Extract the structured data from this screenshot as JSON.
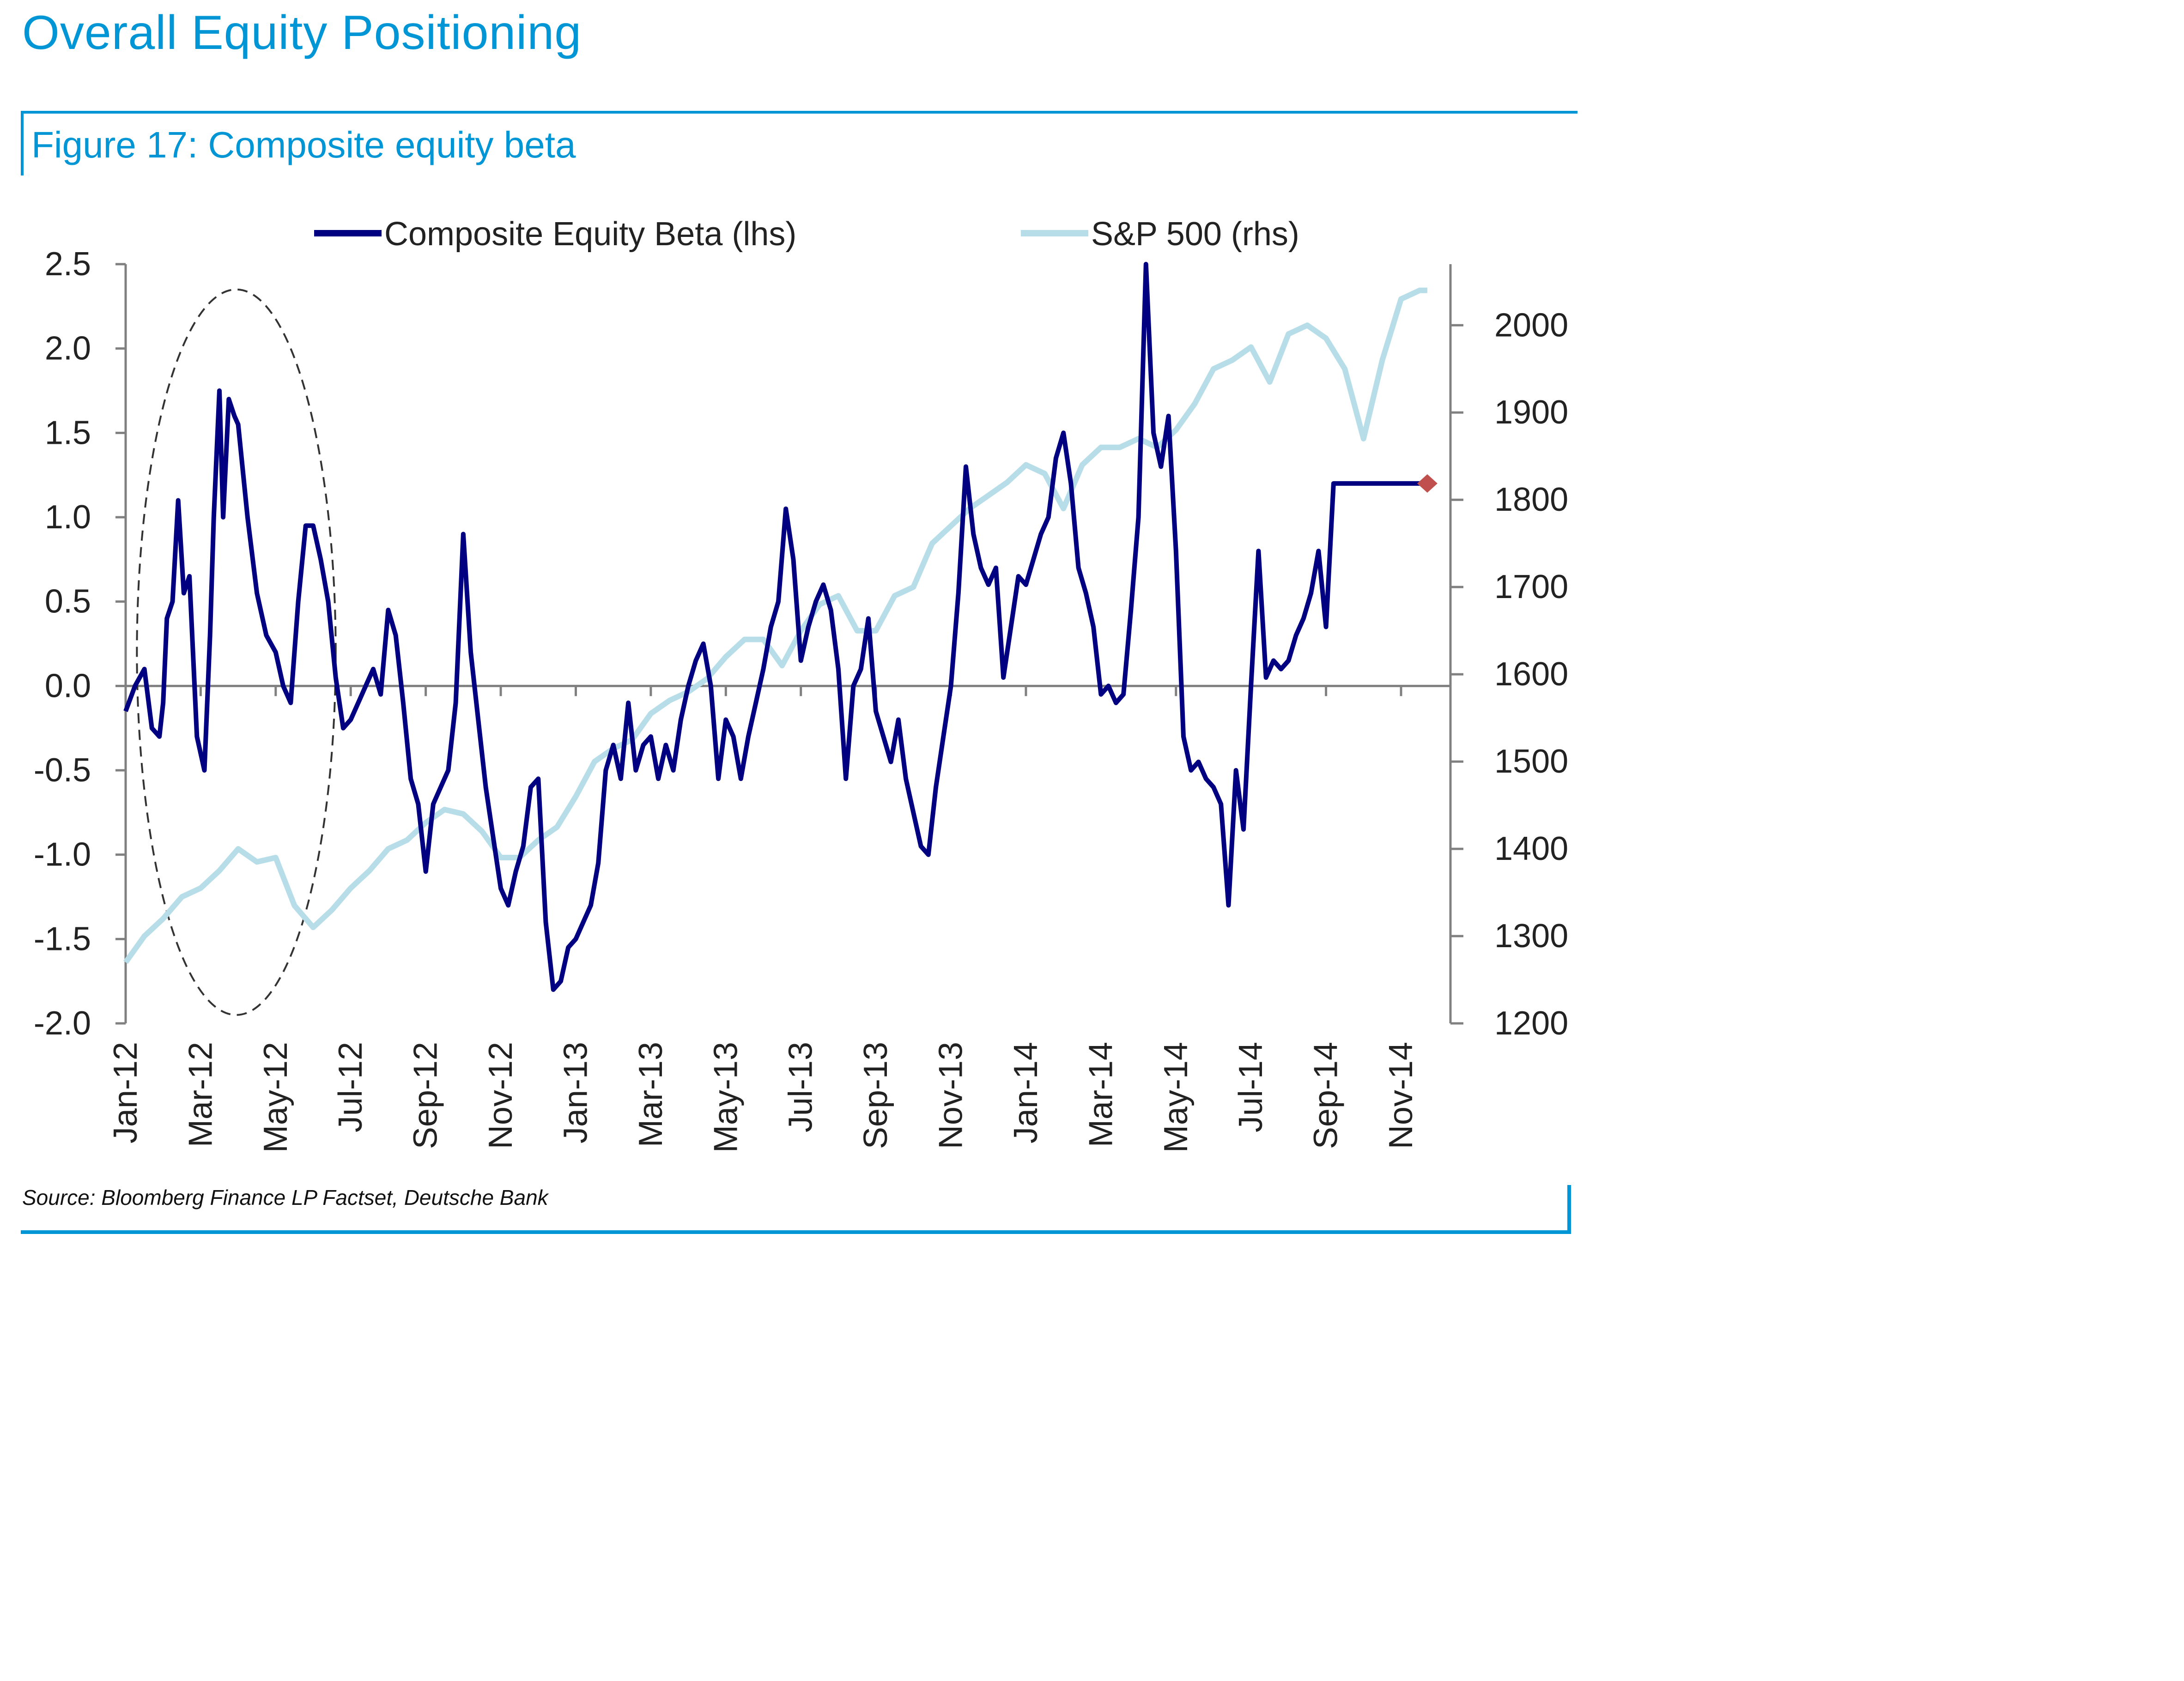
{
  "page": {
    "title": "Overall Equity Positioning",
    "figure_title": "Figure 17: Composite equity beta",
    "source": "Source: Bloomberg Finance LP  Factset, Deutsche Bank"
  },
  "colors": {
    "accent": "#0096d6",
    "beta_line": "#000080",
    "spx_line": "#b7dde8",
    "latest_marker": "#c0504d",
    "axis": "#808080",
    "annotation_ellipse": "#333333"
  },
  "chart_data": {
    "type": "line",
    "title": "Figure 17: Composite equity beta",
    "xlabel": "",
    "ylabel_left": "",
    "ylabel_right": "",
    "x_unit": "months since Jan-12",
    "x_range": [
      0,
      34.8
    ],
    "ylim_left": [
      -2.0,
      2.5
    ],
    "ylim_right": [
      1200,
      2070
    ],
    "yticks_left": [
      "2.5",
      "2.0",
      "1.5",
      "1.0",
      "0.5",
      "0.0",
      "-0.5",
      "-1.0",
      "-1.5",
      "-2.0"
    ],
    "ytick_values_left": [
      2.5,
      2.0,
      1.5,
      1.0,
      0.5,
      0.0,
      -0.5,
      -1.0,
      -1.5,
      -2.0
    ],
    "yticks_right": [
      "2000",
      "1900",
      "1800",
      "1700",
      "1600",
      "1500",
      "1400",
      "1300",
      "1200"
    ],
    "ytick_values_right": [
      2000,
      1900,
      1800,
      1700,
      1600,
      1500,
      1400,
      1300,
      1200
    ],
    "xticks": [
      "Jan-12",
      "Mar-12",
      "May-12",
      "Jul-12",
      "Sep-12",
      "Nov-12",
      "Jan-13",
      "Mar-13",
      "May-13",
      "Jul-13",
      "Sep-13",
      "Nov-13",
      "Jan-14",
      "Mar-14",
      "May-14",
      "Jul-14",
      "Sep-14",
      "Nov-14"
    ],
    "xtick_values": [
      0,
      2,
      4,
      6,
      8,
      10,
      12,
      14,
      16,
      18,
      20,
      22,
      24,
      26,
      28,
      30,
      32,
      34
    ],
    "legend": {
      "placement": "top",
      "entries": [
        "Composite Equity Beta (lhs)",
        "S&P 500 (rhs)"
      ]
    },
    "grid": false,
    "zero_line": true,
    "series": [
      {
        "name": "Composite Equity Beta (lhs)",
        "axis": "left",
        "x": [
          0,
          0.25,
          0.5,
          0.7,
          0.9,
          1.0,
          1.1,
          1.25,
          1.4,
          1.55,
          1.7,
          1.9,
          2.1,
          2.25,
          2.35,
          2.5,
          2.6,
          2.75,
          2.9,
          3.0,
          3.25,
          3.5,
          3.75,
          4.0,
          4.2,
          4.4,
          4.6,
          4.8,
          5.0,
          5.2,
          5.4,
          5.6,
          5.8,
          6.0,
          6.2,
          6.4,
          6.6,
          6.8,
          7.0,
          7.2,
          7.4,
          7.6,
          7.8,
          8.0,
          8.2,
          8.4,
          8.6,
          8.8,
          9.0,
          9.2,
          9.4,
          9.6,
          9.8,
          10.0,
          10.2,
          10.4,
          10.6,
          10.8,
          11.0,
          11.2,
          11.4,
          11.6,
          11.8,
          12.0,
          12.2,
          12.4,
          12.6,
          12.8,
          13.0,
          13.2,
          13.4,
          13.6,
          13.8,
          14.0,
          14.2,
          14.4,
          14.6,
          14.8,
          15.0,
          15.2,
          15.4,
          15.6,
          15.8,
          16.0,
          16.2,
          16.4,
          16.6,
          16.8,
          17.0,
          17.2,
          17.4,
          17.6,
          17.8,
          18.0,
          18.2,
          18.4,
          18.6,
          18.8,
          19.0,
          19.2,
          19.4,
          19.6,
          19.8,
          20.0,
          20.2,
          20.4,
          20.6,
          20.8,
          21.0,
          21.2,
          21.4,
          21.6,
          21.8,
          22.0,
          22.2,
          22.4,
          22.6,
          22.8,
          23.0,
          23.2,
          23.4,
          23.6,
          23.8,
          24.0,
          24.2,
          24.4,
          24.6,
          24.8,
          25.0,
          25.2,
          25.4,
          25.6,
          25.8,
          26.0,
          26.2,
          26.4,
          26.6,
          26.8,
          27.0,
          27.2,
          27.4,
          27.6,
          27.8,
          28.0,
          28.2,
          28.4,
          28.6,
          28.8,
          29.0,
          29.2,
          29.4,
          29.6,
          29.8,
          30.0,
          30.2,
          30.4,
          30.6,
          30.8,
          31.0,
          31.2,
          31.4,
          31.6,
          31.8,
          32.0,
          32.2,
          32.4,
          32.6,
          32.8,
          33.0,
          33.2,
          33.4,
          33.6,
          33.8,
          34.0,
          34.2,
          34.4,
          34.6,
          34.7
        ],
        "values": [
          -0.15,
          0.0,
          0.1,
          -0.25,
          -0.3,
          -0.1,
          0.4,
          0.5,
          1.1,
          0.55,
          0.65,
          -0.3,
          -0.5,
          0.3,
          1.0,
          1.75,
          1.0,
          1.7,
          1.6,
          1.55,
          1.0,
          0.55,
          0.3,
          0.2,
          0.0,
          -0.1,
          0.5,
          0.95,
          0.95,
          0.75,
          0.5,
          0.05,
          -0.25,
          -0.2,
          -0.1,
          0.0,
          0.1,
          -0.05,
          0.45,
          0.3,
          -0.1,
          -0.55,
          -0.7,
          -1.1,
          -0.7,
          -0.6,
          -0.5,
          -0.1,
          0.9,
          0.2,
          -0.2,
          -0.6,
          -0.9,
          -1.2,
          -1.3,
          -1.1,
          -0.95,
          -0.6,
          -0.55,
          -1.4,
          -1.8,
          -1.75,
          -1.55,
          -1.5,
          -1.4,
          -1.3,
          -1.05,
          -0.5,
          -0.35,
          -0.55,
          -0.1,
          -0.5,
          -0.35,
          -0.3,
          -0.55,
          -0.35,
          -0.5,
          -0.2,
          0.0,
          0.15,
          0.25,
          0.0,
          -0.55,
          -0.2,
          -0.3,
          -0.55,
          -0.3,
          -0.1,
          0.1,
          0.35,
          0.5,
          1.05,
          0.75,
          0.15,
          0.35,
          0.5,
          0.6,
          0.45,
          0.1,
          -0.55,
          0.0,
          0.1,
          0.4,
          -0.15,
          -0.3,
          -0.45,
          -0.2,
          -0.55,
          -0.75,
          -0.95,
          -1.0,
          -0.6,
          -0.3,
          0.0,
          0.55,
          1.3,
          0.9,
          0.7,
          0.6,
          0.7,
          0.05,
          0.35,
          0.65,
          0.6,
          0.75,
          0.9,
          1.0,
          1.35,
          1.5,
          1.2,
          0.7,
          0.55,
          0.35,
          -0.05,
          0.0,
          -0.1,
          -0.05,
          0.45,
          1.0,
          2.5,
          1.5,
          1.3,
          1.6,
          0.8,
          -0.3,
          -0.5,
          -0.45,
          -0.55,
          -0.6,
          -0.7,
          -1.3,
          -0.5,
          -0.85,
          0.0,
          0.8,
          0.05,
          0.15,
          0.1,
          0.15,
          0.3,
          0.4,
          0.55,
          0.8,
          0.35,
          1.2,
          1.2,
          1.2,
          1.2,
          1.2,
          1.2,
          1.2,
          1.2,
          1.2,
          1.2,
          1.2,
          1.2,
          1.2,
          1.2
        ]
      },
      {
        "name": "S&P 500 (rhs)",
        "axis": "right",
        "x": [
          0,
          0.5,
          1.0,
          1.5,
          2.0,
          2.5,
          3.0,
          3.5,
          4.0,
          4.5,
          5.0,
          5.5,
          6.0,
          6.5,
          7.0,
          7.5,
          8.0,
          8.5,
          9.0,
          9.5,
          10.0,
          10.5,
          11.0,
          11.5,
          12.0,
          12.5,
          13.0,
          13.5,
          14.0,
          14.5,
          15.0,
          15.5,
          16.0,
          16.5,
          17.0,
          17.5,
          18.0,
          18.5,
          19.0,
          19.5,
          20.0,
          20.5,
          21.0,
          21.5,
          22.0,
          22.5,
          23.0,
          23.5,
          24.0,
          24.5,
          25.0,
          25.5,
          26.0,
          26.5,
          27.0,
          27.5,
          28.0,
          28.5,
          29.0,
          29.5,
          30.0,
          30.5,
          31.0,
          31.5,
          32.0,
          32.5,
          33.0,
          33.5,
          34.0,
          34.5,
          34.7
        ],
        "values": [
          1270,
          1300,
          1320,
          1345,
          1355,
          1375,
          1400,
          1385,
          1390,
          1335,
          1310,
          1330,
          1355,
          1375,
          1400,
          1410,
          1430,
          1445,
          1440,
          1420,
          1390,
          1390,
          1410,
          1425,
          1460,
          1500,
          1515,
          1525,
          1555,
          1570,
          1580,
          1595,
          1620,
          1640,
          1640,
          1610,
          1650,
          1680,
          1690,
          1650,
          1650,
          1690,
          1700,
          1750,
          1770,
          1790,
          1805,
          1820,
          1840,
          1830,
          1790,
          1840,
          1860,
          1860,
          1870,
          1860,
          1880,
          1910,
          1950,
          1960,
          1975,
          1935,
          1990,
          2000,
          1985,
          1950,
          1870,
          1960,
          2030,
          2040,
          2040
        ]
      }
    ],
    "annotations": [
      {
        "type": "dashed-ellipse",
        "label": "",
        "covers": "Jan-12 to Jun-12 beta spike"
      },
      {
        "type": "marker",
        "series": "Composite Equity Beta (lhs)",
        "x": 34.7,
        "value": 1.2,
        "label": "latest"
      }
    ]
  }
}
